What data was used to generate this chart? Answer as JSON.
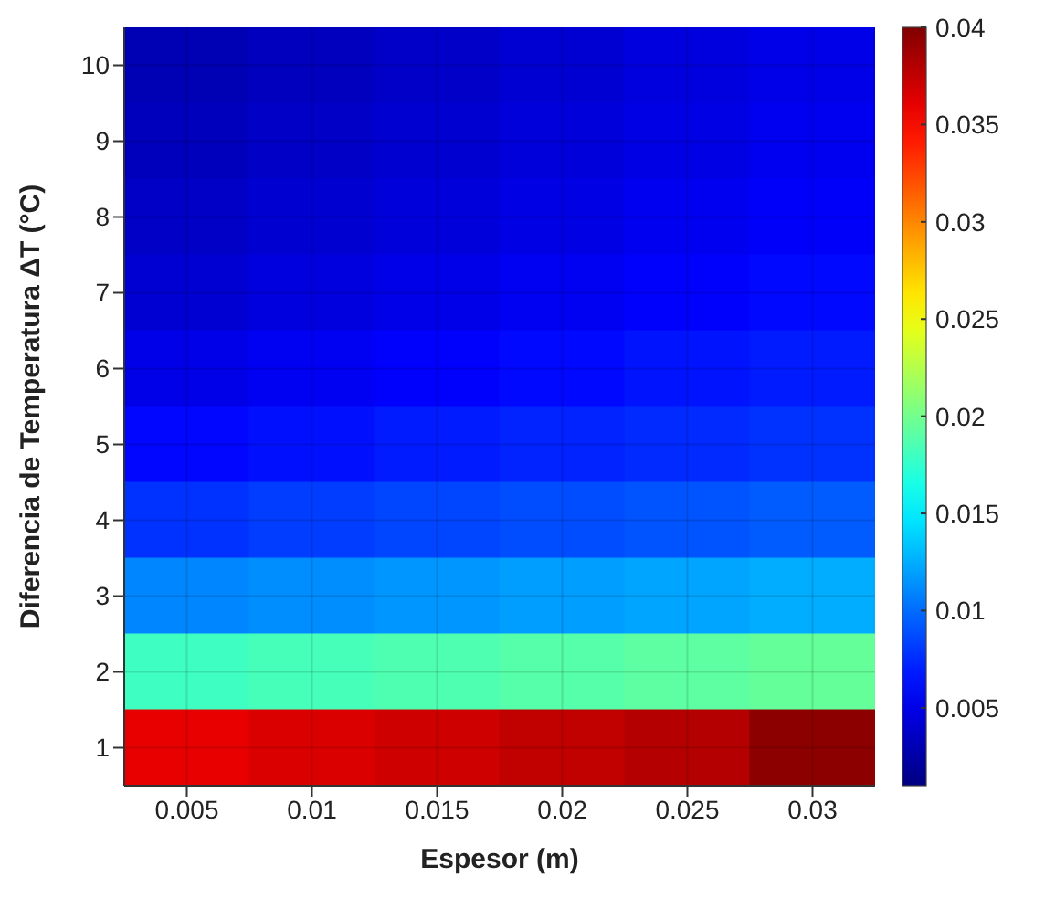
{
  "chart_data": {
    "type": "heatmap",
    "xlabel": "Espesor (m)",
    "ylabel": "Diferencia de Temperatura ΔT (°C)",
    "categories": [
      "0.005",
      "0.01",
      "0.015",
      "0.02",
      "0.025",
      "0.03"
    ],
    "y_categories": [
      "10",
      "9",
      "8",
      "7",
      "6",
      "5",
      "4",
      "3",
      "2",
      "1"
    ],
    "cells": [
      [
        0.003,
        0.0034,
        0.0038,
        0.0042,
        0.0046,
        0.005
      ],
      [
        0.0033,
        0.0037,
        0.0041,
        0.0045,
        0.0049,
        0.0053
      ],
      [
        0.0037,
        0.0041,
        0.0045,
        0.0049,
        0.0053,
        0.0057
      ],
      [
        0.0042,
        0.0046,
        0.005,
        0.0054,
        0.0058,
        0.0062
      ],
      [
        0.005,
        0.0054,
        0.0058,
        0.0062,
        0.0066,
        0.0069
      ],
      [
        0.0061,
        0.0065,
        0.0069,
        0.0072,
        0.0075,
        0.0078
      ],
      [
        0.0078,
        0.0082,
        0.0085,
        0.0088,
        0.0091,
        0.0094
      ],
      [
        0.011,
        0.0113,
        0.0116,
        0.0119,
        0.0122,
        0.0125
      ],
      [
        0.018,
        0.0183,
        0.0186,
        0.0189,
        0.0192,
        0.0195
      ],
      [
        0.036,
        0.0365,
        0.037,
        0.0375,
        0.038,
        0.0395
      ]
    ],
    "clim": [
      0.001,
      0.04
    ],
    "cticks": [
      0.005,
      0.01,
      0.015,
      0.02,
      0.025,
      0.03,
      0.035,
      0.04
    ],
    "grid": true
  }
}
